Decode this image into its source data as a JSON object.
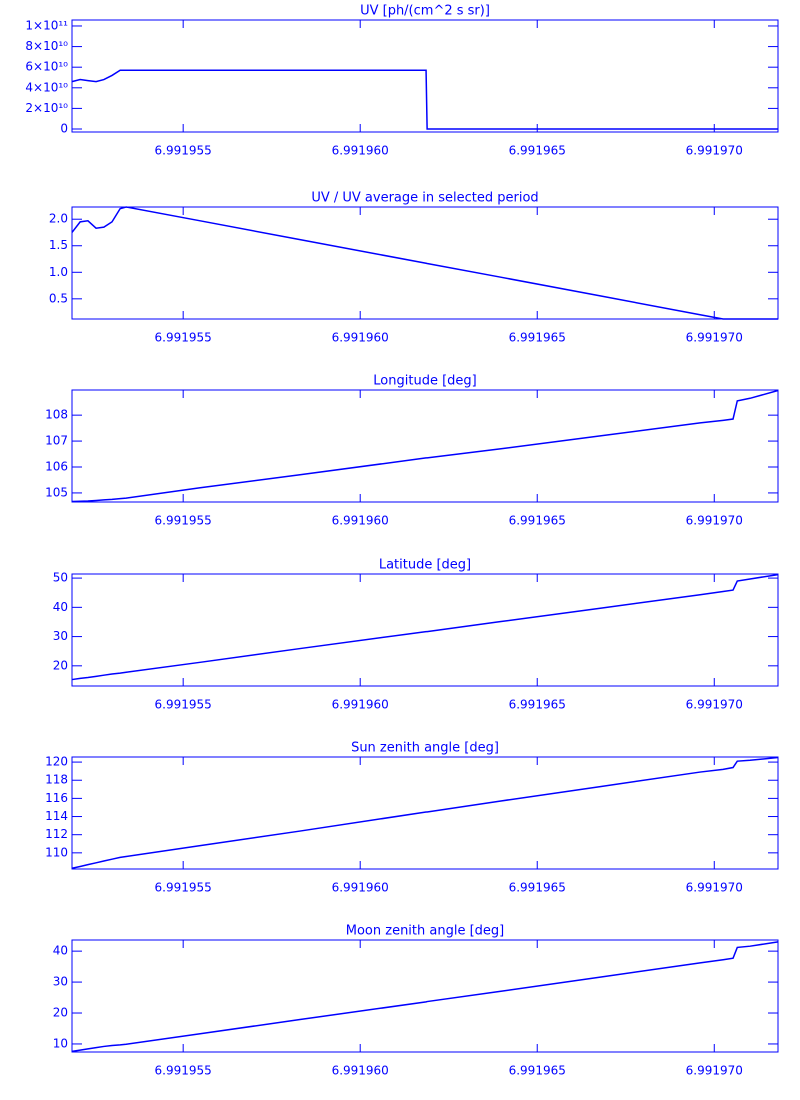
{
  "chart_data": [
    {
      "type": "line",
      "title": "UV [ph/(cm^2 s sr)]",
      "color": "#0000ff",
      "x": [
        6.99195186,
        6.99195209,
        6.99195231,
        6.99195254,
        6.99195276,
        6.99195299,
        6.99195322,
        6.99195339,
        6.99195548,
        6.9919583,
        6.99196186,
        6.99196189,
        6.99196395,
        6.99196678,
        6.9919696,
        6.99197025,
        6.99197053,
        6.99197065,
        6.99197101,
        6.9919718
      ],
      "values": [
        46000000000,
        48000000000,
        47000000000,
        46000000000,
        48000000000,
        52000000000,
        57000000000,
        57000000000,
        57000000000,
        57000000000,
        57000000000,
        0,
        0,
        0,
        0,
        0,
        0,
        0,
        0,
        0
      ],
      "xlim": [
        6.99195186,
        6.9919718
      ],
      "ylim": [
        -2900000000,
        105800000000
      ],
      "xticks": [
        6.991955,
        {
          "value": 6.99196,
          "label": "6.991960"
        },
        6.991965,
        {
          "value": 6.99197,
          "label": "6.991970"
        }
      ],
      "yticks": [
        {
          "value": 0,
          "label": "0"
        },
        {
          "value": 20000000000,
          "label": "2×10¹⁰"
        },
        {
          "value": 40000000000,
          "label": "4×10¹⁰"
        },
        {
          "value": 60000000000,
          "label": "6×10¹⁰"
        },
        {
          "value": 80000000000,
          "label": "8×10¹⁰"
        },
        {
          "value": 100000000000,
          "label": "1×10¹¹"
        }
      ]
    },
    {
      "type": "line",
      "title": "UV / UV average in selected period",
      "color": "#0000ff",
      "x": [
        6.99195186,
        6.99195209,
        6.99195231,
        6.99195254,
        6.99195276,
        6.99195299,
        6.99195322,
        6.99195339,
        6.99195548,
        6.9919583,
        6.99196186,
        6.99196189,
        6.99196395,
        6.99196678,
        6.9919696,
        6.99197025,
        6.99197053,
        6.99197065,
        6.99197101,
        6.9919718
      ],
      "values": [
        1.75,
        1.95,
        1.97,
        1.83,
        1.85,
        1.95,
        2.2,
        2.23,
        1.97,
        1.615,
        1.17,
        1.165,
        0.91,
        0.555,
        0.2,
        0.12,
        0.12,
        0.12,
        0.12,
        0.12
      ],
      "xlim": [
        6.99195186,
        6.9919718
      ],
      "ylim": [
        0.12,
        2.23
      ],
      "xticks": [
        6.991955,
        {
          "value": 6.99196,
          "label": "6.991960"
        },
        6.991965,
        {
          "value": 6.99197,
          "label": "6.991970"
        }
      ],
      "yticks": [
        0.5,
        {
          "value": 1,
          "label": "1.0"
        },
        1.5,
        {
          "value": 2,
          "label": "2.0"
        }
      ]
    },
    {
      "type": "line",
      "title": "Longitude [deg]",
      "color": "#0000ff",
      "x": [
        6.99195186,
        6.99195209,
        6.99195231,
        6.99195254,
        6.99195276,
        6.99195299,
        6.99195322,
        6.99195339,
        6.99195548,
        6.9919583,
        6.99196186,
        6.99196189,
        6.99196395,
        6.99196678,
        6.9919696,
        6.99197025,
        6.99197053,
        6.99197065,
        6.99197101,
        6.9919718
      ],
      "values": [
        104.67,
        104.68,
        104.69,
        104.71,
        104.73,
        104.75,
        104.78,
        104.8,
        105.2,
        105.7,
        106.35,
        106.35,
        106.7,
        107.2,
        107.7,
        107.8,
        107.85,
        108.55,
        108.65,
        108.95
      ],
      "xlim": [
        6.99195186,
        6.9919718
      ],
      "ylim": [
        104.65,
        108.97
      ],
      "xticks": [
        6.991955,
        {
          "value": 6.99196,
          "label": "6.991960"
        },
        6.991965,
        {
          "value": 6.99197,
          "label": "6.991970"
        }
      ],
      "yticks": [
        105,
        106,
        107,
        108
      ]
    },
    {
      "type": "line",
      "title": "Latitude [deg]",
      "color": "#0000ff",
      "x": [
        6.99195186,
        6.99195209,
        6.99195231,
        6.99195254,
        6.99195276,
        6.99195299,
        6.99195322,
        6.99195339,
        6.99195548,
        6.9919583,
        6.99196186,
        6.99196189,
        6.99196395,
        6.99196678,
        6.9919696,
        6.99197025,
        6.99197053,
        6.99197065,
        6.99197101,
        6.9919718
      ],
      "values": [
        15.3,
        15.7,
        16,
        16.4,
        16.8,
        17.2,
        17.5,
        17.8,
        21.2,
        25.9,
        31.7,
        31.7,
        35.1,
        39.7,
        44.3,
        45.4,
        45.9,
        49,
        49.7,
        51.2
      ],
      "xlim": [
        6.99195186,
        6.9919718
      ],
      "ylim": [
        13.1,
        51.4
      ],
      "xticks": [
        6.991955,
        {
          "value": 6.99196,
          "label": "6.991960"
        },
        6.991965,
        {
          "value": 6.99197,
          "label": "6.991970"
        }
      ],
      "yticks": [
        20,
        30,
        40,
        50
      ]
    },
    {
      "type": "line",
      "title": "Sun zenith angle [deg]",
      "color": "#0000ff",
      "x": [
        6.99195186,
        6.99195209,
        6.99195231,
        6.99195254,
        6.99195276,
        6.99195299,
        6.99195322,
        6.99195339,
        6.99195548,
        6.9919583,
        6.99196186,
        6.99196189,
        6.99196395,
        6.99196678,
        6.9919696,
        6.99197025,
        6.99197053,
        6.99197065,
        6.99197101,
        6.9919718
      ],
      "values": [
        108.3,
        108.5,
        108.7,
        108.9,
        109.1,
        109.3,
        109.5,
        109.6,
        110.8,
        112.4,
        114.5,
        114.5,
        115.7,
        117.3,
        118.9,
        119.2,
        119.4,
        120.1,
        120.2,
        120.5
      ],
      "xlim": [
        6.99195186,
        6.9919718
      ],
      "ylim": [
        108.22,
        120.56
      ],
      "xticks": [
        6.991955,
        {
          "value": 6.99196,
          "label": "6.991960"
        },
        6.991965,
        {
          "value": 6.99197,
          "label": "6.991970"
        }
      ],
      "yticks": [
        110,
        112,
        114,
        116,
        118,
        120
      ]
    },
    {
      "type": "line",
      "title": "Moon zenith angle [deg]",
      "color": "#0000ff",
      "x": [
        6.99195186,
        6.99195209,
        6.99195231,
        6.99195254,
        6.99195276,
        6.99195299,
        6.99195322,
        6.99195339,
        6.99195548,
        6.9919583,
        6.99196186,
        6.99196189,
        6.99196395,
        6.99196678,
        6.9919696,
        6.99197025,
        6.99197053,
        6.99197065,
        6.99197101,
        6.9919718
      ],
      "values": [
        7.6,
        8,
        8.4,
        8.8,
        9.2,
        9.5,
        9.7,
        9.9,
        13.3,
        17.9,
        23.6,
        23.7,
        27,
        31.6,
        36.2,
        37.2,
        37.7,
        41.2,
        41.6,
        43
      ],
      "xlim": [
        6.99195186,
        6.9919718
      ],
      "ylim": [
        7.4,
        43.6
      ],
      "xticks": [
        6.991955,
        {
          "value": 6.99196,
          "label": "6.991960"
        },
        6.991965,
        {
          "value": 6.99197,
          "label": "6.991970"
        }
      ],
      "yticks": [
        10,
        20,
        30,
        40
      ]
    }
  ]
}
